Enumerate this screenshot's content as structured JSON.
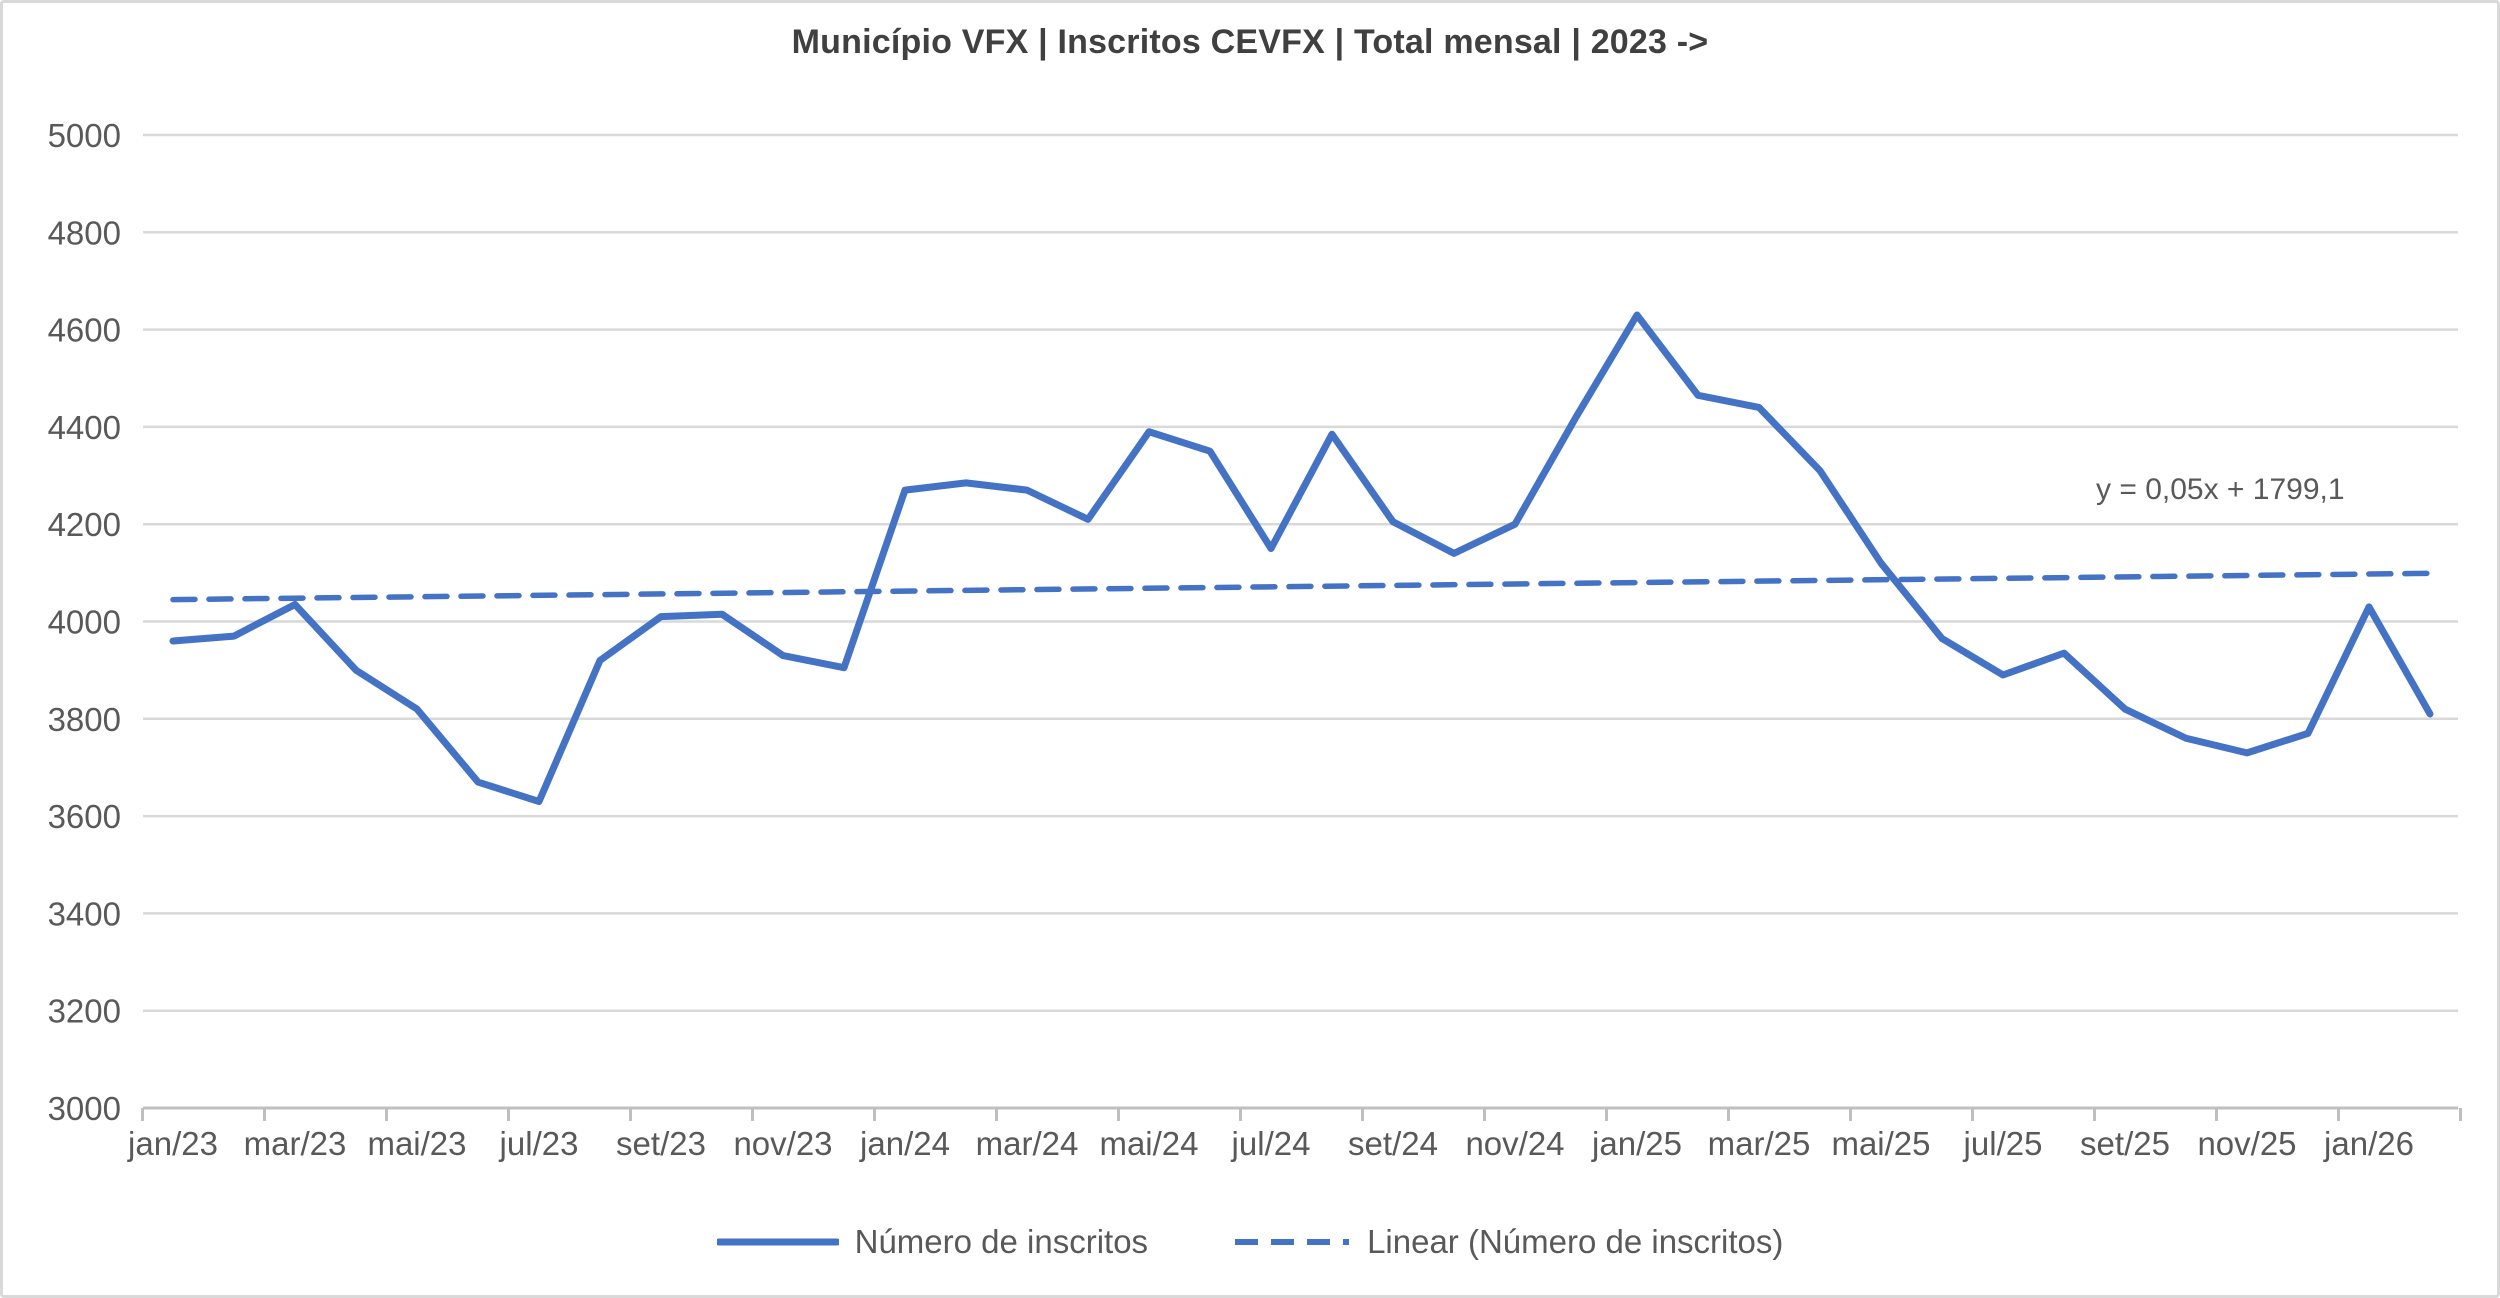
{
  "title": "Município VFX | Inscritos CEVFX | Total mensal | 2023 ->",
  "equation_label": "y = 0,05x + 1799,1",
  "legend": {
    "series_label": "Número de inscritos",
    "trend_label": "Linear (Número de inscritos)"
  },
  "colors": {
    "series": "#4472C4",
    "trend": "#4472C4",
    "gridline": "#D9D9D9",
    "axis_line": "#BFBFBF",
    "axis_text": "#595959",
    "title_text": "#404040",
    "equation_text": "#595959",
    "legend_text": "#595959"
  },
  "chart_data": {
    "type": "line",
    "title": "Município VFX | Inscritos CEVFX | Total mensal | 2023 ->",
    "xlabel": "",
    "ylabel": "",
    "ylim": [
      3000,
      5000
    ],
    "y_ticks": [
      3000,
      3200,
      3400,
      3600,
      3800,
      4000,
      4200,
      4400,
      4600,
      4800,
      5000
    ],
    "grid": "horizontal",
    "legend_position": "bottom",
    "x": [
      "jan/23",
      "fev/23",
      "mar/23",
      "abr/23",
      "mai/23",
      "jun/23",
      "jul/23",
      "ago/23",
      "set/23",
      "out/23",
      "nov/23",
      "dez/23",
      "jan/24",
      "fev/24",
      "mar/24",
      "abr/24",
      "mai/24",
      "jun/24",
      "jul/24",
      "ago/24",
      "set/24",
      "out/24",
      "nov/24",
      "dez/24",
      "jan/25",
      "fev/25",
      "mar/25",
      "abr/25",
      "mai/25",
      "jun/25",
      "jul/25",
      "ago/25",
      "set/25",
      "out/25",
      "nov/25",
      "dez/25",
      "jan/26",
      "fev/26"
    ],
    "x_tick_labels": [
      "jan/23",
      "mar/23",
      "mai/23",
      "jul/23",
      "set/23",
      "nov/23",
      "jan/24",
      "mar/24",
      "mai/24",
      "jul/24",
      "set/24",
      "nov/24",
      "jan/25",
      "mar/25",
      "mai/25",
      "jul/25",
      "set/25",
      "nov/25",
      "jan/26"
    ],
    "series": [
      {
        "name": "Número de inscritos",
        "values": [
          3960,
          3970,
          4035,
          3900,
          3820,
          3670,
          3630,
          3920,
          4010,
          4015,
          3930,
          3905,
          4270,
          4285,
          4270,
          4210,
          4390,
          4350,
          4150,
          4385,
          4205,
          4140,
          4200,
          4420,
          4630,
          4465,
          4440,
          4310,
          4120,
          3965,
          3890,
          3935,
          3820,
          3760,
          3730,
          3770,
          4030,
          3810
        ]
      }
    ],
    "trendline": {
      "name": "Linear (Número de inscritos)",
      "equation": "y = 0,05x + 1799,1",
      "start_value": 4045,
      "end_value": 4099
    }
  }
}
